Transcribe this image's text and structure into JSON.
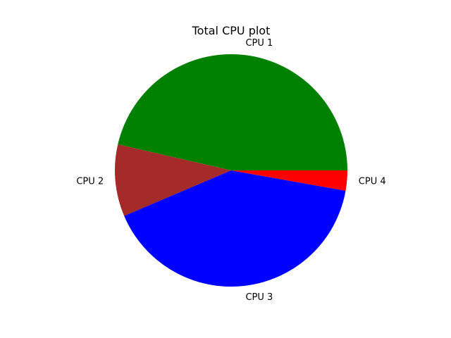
{
  "chart_data": {
    "type": "pie",
    "title": "Total CPU plot",
    "labels": [
      "CPU 1",
      "CPU 2",
      "CPU 3",
      "CPU 4"
    ],
    "values": [
      46.4,
      10.0,
      40.8,
      2.8
    ],
    "colors": [
      "#008000",
      "#a52a2a",
      "#0000ff",
      "#ff0000"
    ],
    "start_angle_deg": 0,
    "direction": "counterclockwise"
  }
}
